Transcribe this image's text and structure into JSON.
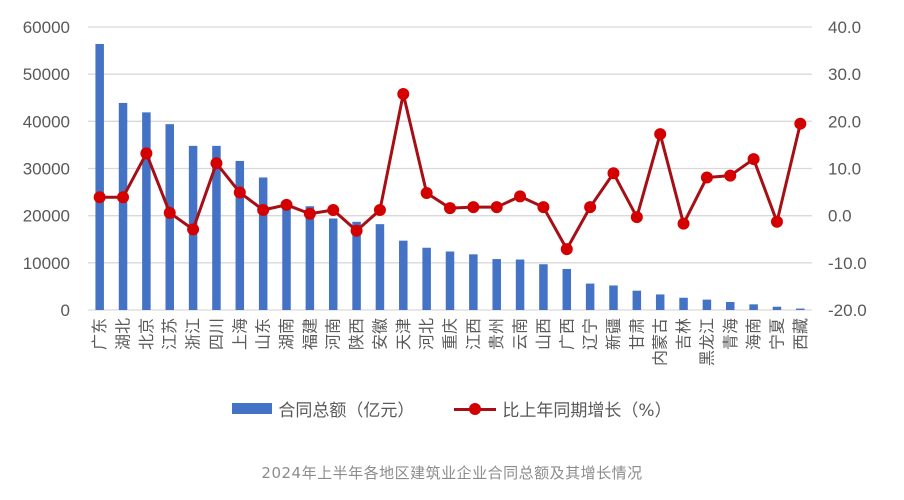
{
  "chart_data": {
    "type": "bar+line",
    "title": "2024年上半年各地区建筑业企业合同总额及其增长情况",
    "categories": [
      "广东",
      "湖北",
      "北京",
      "江苏",
      "浙江",
      "四川",
      "上海",
      "山东",
      "湖南",
      "福建",
      "河南",
      "陕西",
      "安徽",
      "天津",
      "河北",
      "重庆",
      "江西",
      "贵州",
      "云南",
      "山西",
      "广西",
      "辽宁",
      "新疆",
      "甘肃",
      "内蒙古",
      "吉林",
      "黑龙江",
      "青海",
      "海南",
      "宁夏",
      "西藏"
    ],
    "series": [
      {
        "name": "合同总额（亿元）",
        "type": "bar",
        "axis": "left",
        "color": "#4472C4",
        "values": [
          56400,
          43900,
          41900,
          39400,
          34800,
          34800,
          31600,
          28100,
          22600,
          22000,
          19400,
          18700,
          18200,
          14700,
          13200,
          12400,
          11800,
          10800,
          10700,
          9700,
          8700,
          5600,
          5200,
          4100,
          3300,
          2600,
          2200,
          1700,
          1200,
          700,
          300
        ]
      },
      {
        "name": "比上年同期增长（%）",
        "type": "line",
        "axis": "right",
        "color": "#C00000",
        "values": [
          3.9,
          3.9,
          13.2,
          0.6,
          -2.9,
          11.1,
          4.9,
          1.2,
          2.3,
          0.4,
          1.2,
          -3.2,
          1.2,
          25.8,
          4.8,
          1.6,
          1.8,
          1.8,
          4.1,
          1.8,
          -7.1,
          1.8,
          9.0,
          -0.3,
          17.3,
          -1.7,
          8.1,
          8.5,
          12.0,
          -1.3,
          19.5
        ]
      }
    ],
    "xlabel": "",
    "ylabel": "",
    "ylim": [
      0,
      60000
    ],
    "y2lim": [
      -20,
      40
    ],
    "yticks": [
      "60000",
      "50000",
      "40000",
      "30000",
      "20000",
      "10000",
      "0"
    ],
    "y2ticks": [
      "40.0",
      "30.0",
      "20.0",
      "10.0",
      "0.0",
      "-10.0",
      "-20.0"
    ],
    "grid": true,
    "legend_position": "bottom"
  },
  "legend": {
    "bar_label": "合同总额（亿元）",
    "line_label": "比上年同期增长（%）"
  },
  "caption": "2024年上半年各地区建筑业企业合同总额及其增长情况",
  "colors": {
    "bar": "#4472C4",
    "line": "#A50F15",
    "marker": "#D40000",
    "grid": "#D9D9D9",
    "text": "#595959"
  }
}
